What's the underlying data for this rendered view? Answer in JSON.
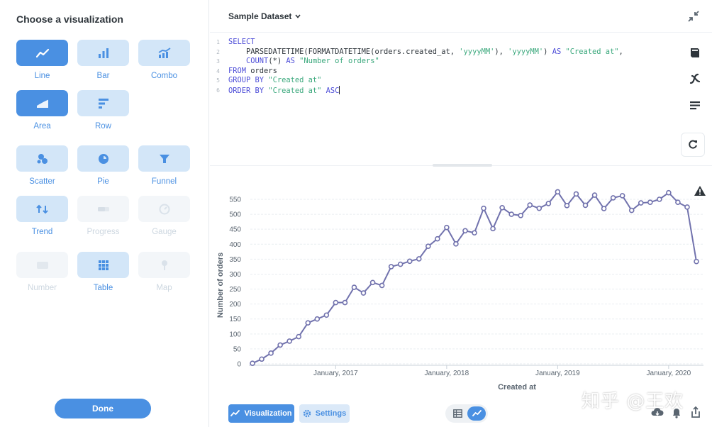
{
  "sidebar": {
    "title": "Choose a visualization",
    "tiles": [
      {
        "label": "Line",
        "icon": "line-chart-icon",
        "state": "selected"
      },
      {
        "label": "Bar",
        "icon": "bar-chart-icon",
        "state": "normal"
      },
      {
        "label": "Combo",
        "icon": "combo-chart-icon",
        "state": "normal"
      },
      {
        "label": "Area",
        "icon": "area-chart-icon",
        "state": "selected"
      },
      {
        "label": "Row",
        "icon": "row-chart-icon",
        "state": "normal"
      },
      {
        "label": "Scatter",
        "icon": "scatter-chart-icon",
        "state": "normal"
      },
      {
        "label": "Pie",
        "icon": "pie-chart-icon",
        "state": "normal"
      },
      {
        "label": "Funnel",
        "icon": "funnel-icon",
        "state": "normal"
      },
      {
        "label": "Trend",
        "icon": "trend-icon",
        "state": "normal"
      },
      {
        "label": "Progress",
        "icon": "progress-icon",
        "state": "disabled"
      },
      {
        "label": "Gauge",
        "icon": "gauge-icon",
        "state": "disabled"
      },
      {
        "label": "Number",
        "icon": "number-icon",
        "state": "disabled"
      },
      {
        "label": "Table",
        "icon": "table-icon",
        "state": "normal"
      },
      {
        "label": "Map",
        "icon": "map-pin-icon",
        "state": "disabled"
      }
    ],
    "done_label": "Done"
  },
  "header": {
    "dataset": "Sample Dataset"
  },
  "editor": {
    "line_numbers": [
      "1",
      "2",
      "3",
      "4",
      "5",
      "6"
    ]
  },
  "chart_data": {
    "type": "line",
    "x": [
      "2016-04",
      "2016-05",
      "2016-06",
      "2016-07",
      "2016-08",
      "2016-09",
      "2016-10",
      "2016-11",
      "2016-12",
      "2017-01",
      "2017-02",
      "2017-03",
      "2017-04",
      "2017-05",
      "2017-06",
      "2017-07",
      "2017-08",
      "2017-09",
      "2017-10",
      "2017-11",
      "2017-12",
      "2018-01",
      "2018-02",
      "2018-03",
      "2018-04",
      "2018-05",
      "2018-06",
      "2018-07",
      "2018-08",
      "2018-09",
      "2018-10",
      "2018-11",
      "2018-12",
      "2019-01",
      "2019-02",
      "2019-03",
      "2019-04",
      "2019-05",
      "2019-06",
      "2019-07",
      "2019-08",
      "2019-09",
      "2019-10",
      "2019-11",
      "2019-12",
      "2020-01",
      "2020-02",
      "2020-03",
      "2020-04"
    ],
    "series": [
      {
        "values": [
          2,
          16,
          36,
          63,
          76,
          91,
          137,
          150,
          163,
          205,
          205,
          256,
          237,
          272,
          262,
          325,
          333,
          343,
          351,
          393,
          418,
          456,
          401,
          445,
          438,
          520,
          452,
          522,
          500,
          496,
          531,
          520,
          536,
          575,
          529,
          568,
          530,
          564,
          519,
          555,
          562,
          513,
          538,
          540,
          550,
          572,
          540,
          524,
          342
        ]
      }
    ],
    "xlabel": "Created at",
    "ylabel": "Number of orders",
    "ylim": [
      0,
      550
    ],
    "yticks": [
      "0",
      "50",
      "100",
      "150",
      "200",
      "250",
      "300",
      "350",
      "400",
      "450",
      "500",
      "550"
    ],
    "xticks": [
      {
        "label": "January, 2017",
        "at": "2017-01"
      },
      {
        "label": "January, 2018",
        "at": "2018-01"
      },
      {
        "label": "January, 2019",
        "at": "2019-01"
      },
      {
        "label": "January, 2020",
        "at": "2020-01"
      }
    ],
    "grid": "horizontal",
    "line_color": "#7172ad"
  },
  "footer": {
    "visualization_label": "Visualization",
    "settings_label": "Settings"
  },
  "watermark": "知乎 @王欢",
  "colors": {
    "accent": "#4a90e2",
    "tile_bg": "#d3e6f8"
  }
}
